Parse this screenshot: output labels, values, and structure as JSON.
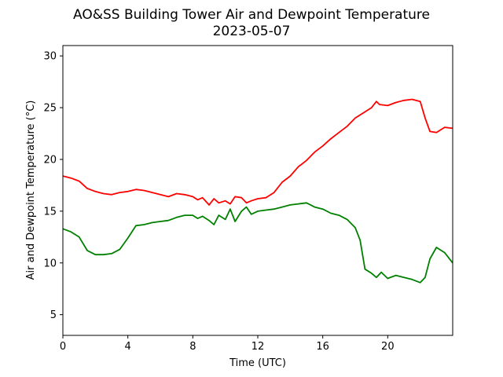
{
  "chart_data": {
    "type": "line",
    "title": "AO&SS Building Tower Air and Dewpoint Temperature",
    "subtitle": "2023-05-07",
    "xlabel": "Time (UTC)",
    "ylabel": "Air and Dewpoint Temperature (°C)",
    "xlim": [
      0,
      24
    ],
    "ylim": [
      3,
      31
    ],
    "xticks": [
      0,
      4,
      8,
      12,
      16,
      20
    ],
    "yticks": [
      5,
      10,
      15,
      20,
      25,
      30
    ],
    "grid": false,
    "series": [
      {
        "color": "#ff0000",
        "x": [
          0,
          0.5,
          1,
          1.5,
          2,
          2.5,
          3,
          3.5,
          4,
          4.5,
          5,
          5.5,
          6,
          6.5,
          7,
          7.5,
          8,
          8.3,
          8.6,
          9,
          9.3,
          9.6,
          10,
          10.3,
          10.6,
          11,
          11.3,
          11.6,
          12,
          12.5,
          13,
          13.5,
          14,
          14.5,
          15,
          15.5,
          16,
          16.5,
          17,
          17.5,
          18,
          18.5,
          19,
          19.3,
          19.5,
          20,
          20.5,
          21,
          21.5,
          22,
          22.3,
          22.6,
          23,
          23.5,
          24
        ],
        "y": [
          18.4,
          18.2,
          17.9,
          17.2,
          16.9,
          16.7,
          16.6,
          16.8,
          16.9,
          17.1,
          17.0,
          16.8,
          16.6,
          16.4,
          16.7,
          16.6,
          16.4,
          16.1,
          16.3,
          15.6,
          16.2,
          15.8,
          16.0,
          15.7,
          16.4,
          16.3,
          15.8,
          16.0,
          16.2,
          16.3,
          16.8,
          17.8,
          18.4,
          19.3,
          19.9,
          20.7,
          21.3,
          22.0,
          22.6,
          23.2,
          24.0,
          24.5,
          25.0,
          25.6,
          25.3,
          25.2,
          25.5,
          25.7,
          25.8,
          25.6,
          24.0,
          22.7,
          22.6,
          23.1,
          23.0
        ]
      },
      {
        "color": "#008000",
        "x": [
          0,
          0.5,
          1,
          1.5,
          2,
          2.5,
          3,
          3.5,
          4,
          4.5,
          5,
          5.5,
          6,
          6.5,
          7,
          7.5,
          8,
          8.3,
          8.6,
          9,
          9.3,
          9.6,
          10,
          10.3,
          10.6,
          11,
          11.3,
          11.6,
          12,
          12.5,
          13,
          13.5,
          14,
          14.5,
          15,
          15.5,
          16,
          16.5,
          17,
          17.5,
          18,
          18.3,
          18.6,
          19,
          19.3,
          19.6,
          20,
          20.5,
          21,
          21.5,
          22,
          22.3,
          22.6,
          23,
          23.5,
          24
        ],
        "y": [
          13.3,
          13.0,
          12.5,
          11.2,
          10.8,
          10.8,
          10.9,
          11.3,
          12.4,
          13.6,
          13.7,
          13.9,
          14.0,
          14.1,
          14.4,
          14.6,
          14.6,
          14.3,
          14.5,
          14.1,
          13.7,
          14.6,
          14.2,
          15.2,
          14.0,
          15.0,
          15.4,
          14.7,
          15.0,
          15.1,
          15.2,
          15.4,
          15.6,
          15.7,
          15.8,
          15.4,
          15.2,
          14.8,
          14.6,
          14.2,
          13.4,
          12.2,
          9.4,
          9.0,
          8.6,
          9.1,
          8.5,
          8.8,
          8.6,
          8.4,
          8.1,
          8.6,
          10.4,
          11.5,
          11.0,
          10.0
        ]
      }
    ]
  }
}
